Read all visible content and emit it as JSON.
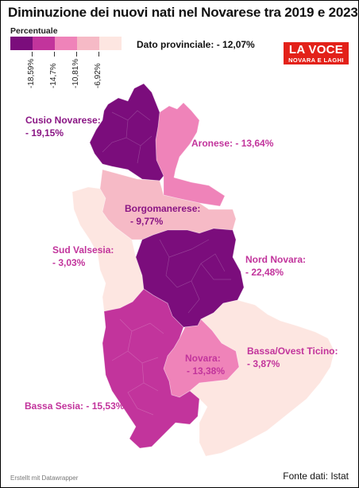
{
  "title": "Diminuzione dei nuovi nati nel Novarese tra 2019 e 2023",
  "legend": {
    "title": "Percentuale",
    "colors": [
      "#7b0d7c",
      "#c2349c",
      "#ef83b9",
      "#f6bac6",
      "#fde6e1"
    ],
    "ticks": [
      "-18,59%",
      "-14,7%",
      "-10,81%",
      "-6,92%"
    ]
  },
  "provincial": "Dato provinciale: - 12,07%",
  "logo": {
    "line1": "LA VOCE",
    "line2": "NOVARA E LAGHI"
  },
  "regions": [
    {
      "name": "Cusio Novarese:",
      "value": "- 19,15%",
      "pct": -19.15,
      "color": "#7b0d7c"
    },
    {
      "name": "Aronese:",
      "value": "- 13,64%",
      "pct": -13.64,
      "color": "#e8489e"
    },
    {
      "name": "Borgomanerese:",
      "value": "- 9,77%",
      "pct": -9.77,
      "color": "#7b0d7c"
    },
    {
      "name": "Sud Valsesia:",
      "value": "- 3,03%",
      "pct": -3.03,
      "color": "#c2349c"
    },
    {
      "name": "Nord Novara:",
      "value": "- 22,48%",
      "pct": -22.48,
      "color": "#c2349c"
    },
    {
      "name": "Novara:",
      "value": "- 13,38%",
      "pct": -13.38,
      "color": "#c2349c"
    },
    {
      "name": "Bassa/Ovest Ticino:",
      "value": "- 3,87%",
      "pct": -3.87,
      "color": "#c2349c"
    },
    {
      "name": "Bassa Sesia:",
      "value": "- 15,53%",
      "pct": -15.53,
      "color": "#c2349c"
    }
  ],
  "credit": "Erstellt mit Datawrapper",
  "source": "Fonte dati: Istat"
}
